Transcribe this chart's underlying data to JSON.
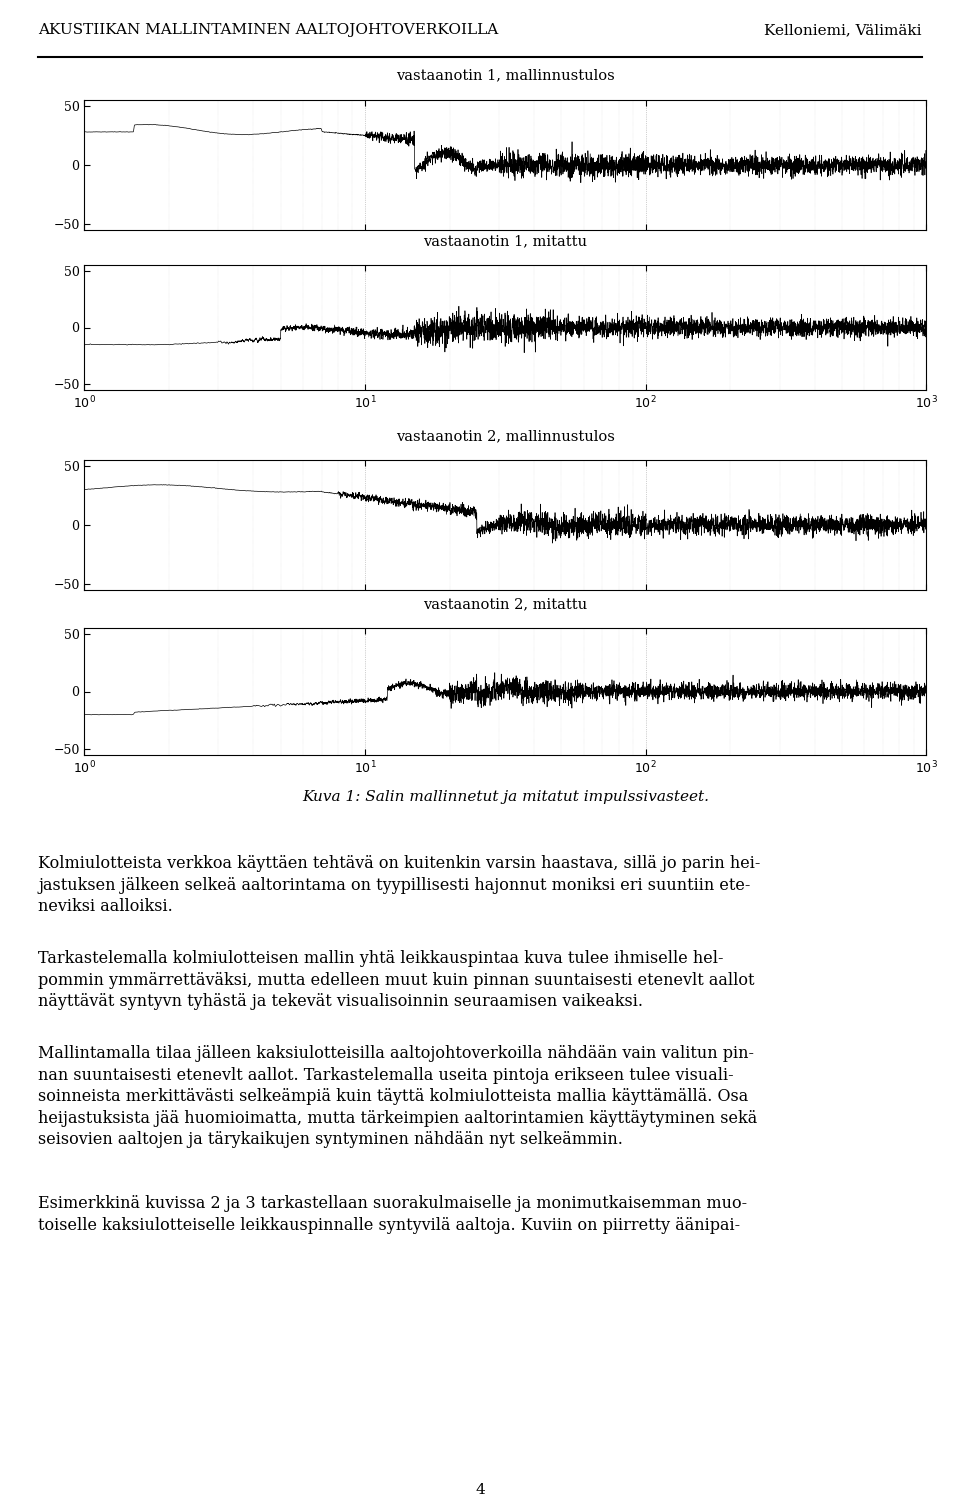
{
  "header_left": "Akustiikan mallintaminen aaltojohtoverkoilla",
  "header_right": "Kelloniemi, Välimäki",
  "plot_titles": [
    "vastaanotin 1, mallinnustulos",
    "vastaanotin 1, mitattu",
    "vastaanotin 2, mallinnustulos",
    "vastaanotin 2, mitattu"
  ],
  "caption_normal": "Kuva 1: ",
  "caption_italic": "Salin mallinnetut ja mitatut impulssivasteet.",
  "paragraphs": [
    "Kolmiulotteista verkkoa käyttäen tehtävä on kuitenkin varsin haastava, sillä jo parin hei-\njastuksen jälkeen selkeä aaltorintama on tyypillisesti hajonnut moniksi eri suuntiin ete-\nneviksi aalloiksi.",
    "Tarkastelemalla kolmiulotteisen mallin yhtä leikkauspintaa kuva tulee ihmiselle hel-\npommin ymmärrettäväksi, mutta edelleen muut kuin pinnan suuntaisesti etenevlt aallot\nnäyttävät syntyvn tyhästä ja tekevät visualisoinnin seuraamisen vaikeaksi.",
    "Mallintamalla tilaa jälleen kaksiulotteisilla aaltojohtoverkoilla nähdään vain valitun pin-\nnan suuntaisesti etenevlt aallot. Tarkastelemalla useita pintoja erikseen tulee visuali-\nsoinneista merkittävästi selkeämpiä kuin täyttä kolmiulotteista mallia käyttämällä. Osa\nheijastuksista jää huomioimatta, mutta tärkeimpien aaltorintamien käyttäytyminen sekä\nseisovien aaltojen ja tärykaikujen syntyminen nähdään nyt selkeämmin.",
    "Esimerkkinä kuvissa 2 ja 3 tarkastellaan suorakulmaiselle ja monimutkaisemman muo-\ntoiselle kaksiulotteiselle leikkauspinnalle syntyvilä aaltoja. Kuviin on piirretty äänipai-"
  ],
  "page_number": "4",
  "bg_color": "#ffffff",
  "text_color": "#000000",
  "signal_color": "#000000",
  "grid_color": "#999999"
}
